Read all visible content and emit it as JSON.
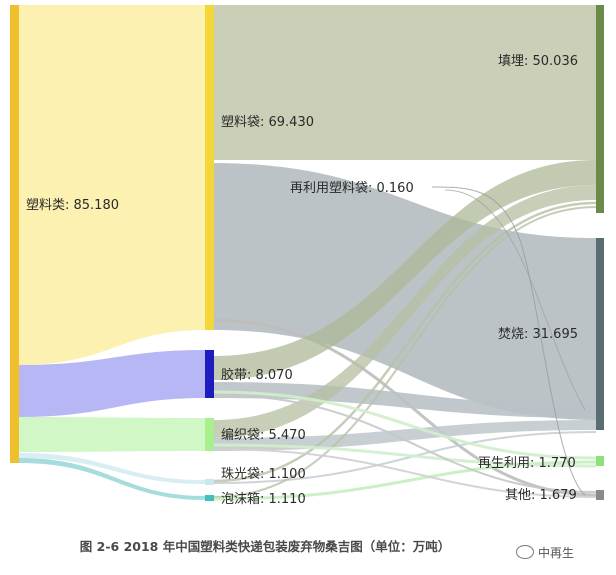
{
  "chart_data": {
    "type": "sankey",
    "caption": "图 2-6 2018 年中国塑料类快递包装废弃物桑吉图（单位：万吨）",
    "unit": "万吨",
    "nodes": [
      {
        "id": "plastics",
        "label": "塑料类: 85.180",
        "value": 85.18,
        "color": "#f2c22e"
      },
      {
        "id": "bags",
        "label": "塑料袋: 69.430",
        "value": 69.43,
        "color": "#f2d63a"
      },
      {
        "id": "tape",
        "label": "胶带: 8.070",
        "value": 8.07,
        "color": "#1c1cc0"
      },
      {
        "id": "woven",
        "label": "编织袋: 5.470",
        "value": 5.47,
        "color": "#a8ef8e"
      },
      {
        "id": "pearl",
        "label": "珠光袋: 1.100",
        "value": 1.1,
        "color": "#c9e8ee"
      },
      {
        "id": "foam",
        "label": "泡沫箱: 1.110",
        "value": 1.11,
        "color": "#3fbfbf"
      },
      {
        "id": "landfill",
        "label": "填埋: 50.036",
        "value": 50.036,
        "color": "#6b8a4a"
      },
      {
        "id": "incinerate",
        "label": "焚烧: 31.695",
        "value": 31.695,
        "color": "#5a6d73"
      },
      {
        "id": "recycle",
        "label": "再生利用: 1.770",
        "value": 1.77,
        "color": "#8ee07a"
      },
      {
        "id": "other",
        "label": "其他: 1.679",
        "value": 1.679,
        "color": "#8a8a8a"
      }
    ],
    "annotations": [
      {
        "text": "再利用塑料袋: 0.160",
        "value": 0.16
      }
    ]
  },
  "watermark": {
    "text": "中再生"
  }
}
